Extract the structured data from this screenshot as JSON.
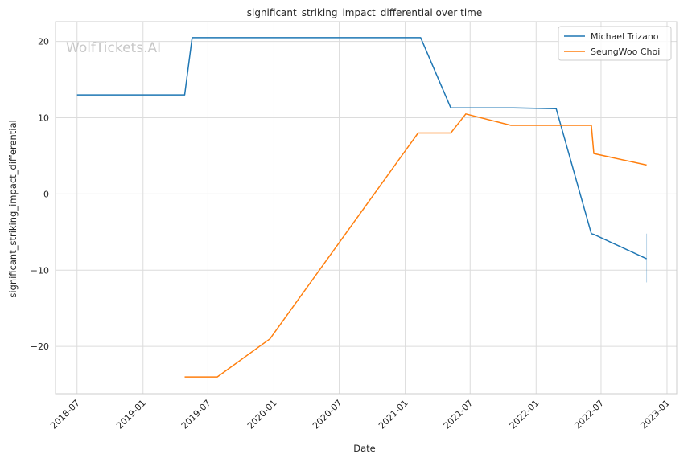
{
  "chart_data": {
    "type": "line",
    "title": "significant_striking_impact_differential over time",
    "xlabel": "Date",
    "ylabel": "significant_striking_impact_differential",
    "watermark": "WolfTickets.AI",
    "x_ticks": [
      "2018-07",
      "2019-01",
      "2019-07",
      "2020-01",
      "2020-07",
      "2021-01",
      "2021-07",
      "2022-01",
      "2022-07",
      "2023-01"
    ],
    "y_ticks": [
      -20,
      -10,
      0,
      10,
      20
    ],
    "xlim": [
      "2018-05-02",
      "2023-01-28"
    ],
    "ylim": [
      -26.2,
      22.6
    ],
    "grid": true,
    "legend_position": "top-right",
    "series": [
      {
        "name": "Michael Trizano",
        "color": "#1f77b4",
        "points": [
          [
            "2018-07-01",
            13.0
          ],
          [
            "2019-04-27",
            13.0
          ],
          [
            "2019-05-18",
            20.5
          ],
          [
            "2021-02-13",
            20.5
          ],
          [
            "2021-05-08",
            11.3
          ],
          [
            "2021-10-30",
            11.3
          ],
          [
            "2022-02-26",
            11.2
          ],
          [
            "2022-06-04",
            -5.2
          ],
          [
            "2022-06-11",
            -5.3
          ],
          [
            "2022-11-05",
            -8.5
          ]
        ],
        "error_bar": {
          "x": "2022-11-05",
          "low": -11.6,
          "high": -5.2
        }
      },
      {
        "name": "SeungWoo Choi",
        "color": "#ff7f0e",
        "points": [
          [
            "2019-04-27",
            -24.0
          ],
          [
            "2019-07-27",
            -24.0
          ],
          [
            "2019-12-21",
            -19.0
          ],
          [
            "2021-02-06",
            8.0
          ],
          [
            "2021-05-08",
            8.0
          ],
          [
            "2021-06-19",
            10.5
          ],
          [
            "2021-10-23",
            9.0
          ],
          [
            "2022-06-04",
            9.0
          ],
          [
            "2022-06-11",
            5.3
          ],
          [
            "2022-11-05",
            3.8
          ]
        ]
      }
    ]
  }
}
